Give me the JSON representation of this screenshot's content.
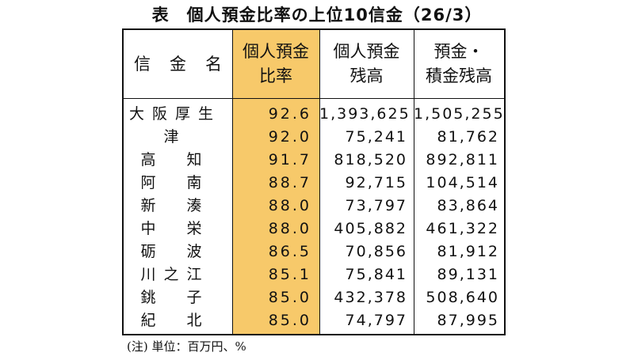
{
  "title": "表　個人預金比率の上位10信金（26/3）",
  "headers": {
    "col0": [
      "信",
      "金",
      "名"
    ],
    "col1": [
      "個人預金",
      "比率"
    ],
    "col2": [
      "個人預金",
      "残高"
    ],
    "col3": [
      "預金・",
      "積金残高"
    ]
  },
  "rows": [
    {
      "name": "大阪厚生",
      "ratio": "92.6",
      "personal": "1,393,625",
      "total": "1,505,255"
    },
    {
      "name": "津",
      "ratio": "92.0",
      "personal": "75,241",
      "total": "81,762"
    },
    {
      "name": "高　知",
      "ratio": "91.7",
      "personal": "818,520",
      "total": "892,811"
    },
    {
      "name": "阿　南",
      "ratio": "88.7",
      "personal": "92,715",
      "total": "104,514"
    },
    {
      "name": "新　湊",
      "ratio": "88.0",
      "personal": "73,797",
      "total": "83,864"
    },
    {
      "name": "中　栄",
      "ratio": "88.0",
      "personal": "405,882",
      "total": "461,322"
    },
    {
      "name": "砺　波",
      "ratio": "86.5",
      "personal": "70,856",
      "total": "81,912"
    },
    {
      "name": "川之江",
      "ratio": "85.1",
      "personal": "75,841",
      "total": "89,131"
    },
    {
      "name": "銚　子",
      "ratio": "85.0",
      "personal": "432,378",
      "total": "508,640"
    },
    {
      "name": "紀　北",
      "ratio": "85.0",
      "personal": "74,797",
      "total": "87,995"
    }
  ],
  "note": "(注) 単位：百万円、%",
  "colors": {
    "highlight": "#f7c96a"
  }
}
